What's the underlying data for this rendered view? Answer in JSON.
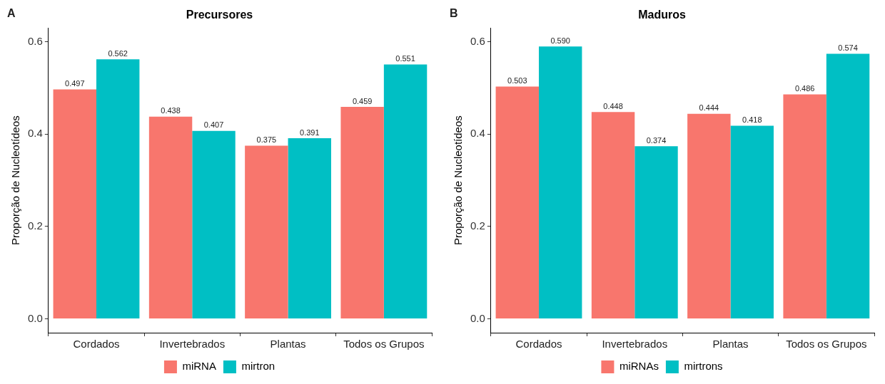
{
  "chart_data": [
    {
      "type": "bar",
      "title": "Precursores",
      "ylabel": "Proporção de Nucleotídeos",
      "annotations": [
        "A"
      ],
      "categories": [
        "Cordados",
        "Invertebrados",
        "Plantas",
        "Todos os Grupos"
      ],
      "ylim": [
        -0.03,
        0.63
      ],
      "yticks": [
        {
          "value": 0,
          "label": "0.0"
        },
        {
          "value": 0.2,
          "label": "0.2"
        },
        {
          "value": 0.4,
          "label": "0.4"
        },
        {
          "value": 0.6,
          "label": "0.6"
        }
      ],
      "grid": false,
      "legend": "bottom",
      "series": [
        {
          "name": "miRNA",
          "color": "#f8766d",
          "values": [
            0.497,
            0.438,
            0.375,
            0.459
          ],
          "value_labels": [
            "0.497",
            "0.438",
            "0.375",
            "0.459"
          ]
        },
        {
          "name": "mirtron",
          "color": "#00bfc4",
          "values": [
            0.562,
            0.407,
            0.391,
            0.551
          ],
          "value_labels": [
            "0.562",
            "0.407",
            "0.391",
            "0.551"
          ]
        }
      ]
    },
    {
      "type": "bar",
      "title": "Maduros",
      "ylabel": "Proporção de Nucleotídeos",
      "annotations": [
        "B"
      ],
      "categories": [
        "Cordados",
        "Invertebrados",
        "Plantas",
        "Todos os Grupos"
      ],
      "ylim": [
        -0.03,
        0.63
      ],
      "yticks": [
        {
          "value": 0,
          "label": "0.0"
        },
        {
          "value": 0.2,
          "label": "0.2"
        },
        {
          "value": 0.4,
          "label": "0.4"
        },
        {
          "value": 0.6,
          "label": "0.6"
        }
      ],
      "grid": false,
      "legend": "bottom",
      "series": [
        {
          "name": "miRNAs",
          "color": "#f8766d",
          "values": [
            0.503,
            0.448,
            0.444,
            0.486
          ],
          "value_labels": [
            "0.503",
            "0.448",
            "0.444",
            "0.486"
          ]
        },
        {
          "name": "mirtrons",
          "color": "#00bfc4",
          "values": [
            0.59,
            0.374,
            0.418,
            0.574
          ],
          "value_labels": [
            "0.590",
            "0.374",
            "0.418",
            "0.574"
          ]
        }
      ]
    }
  ]
}
